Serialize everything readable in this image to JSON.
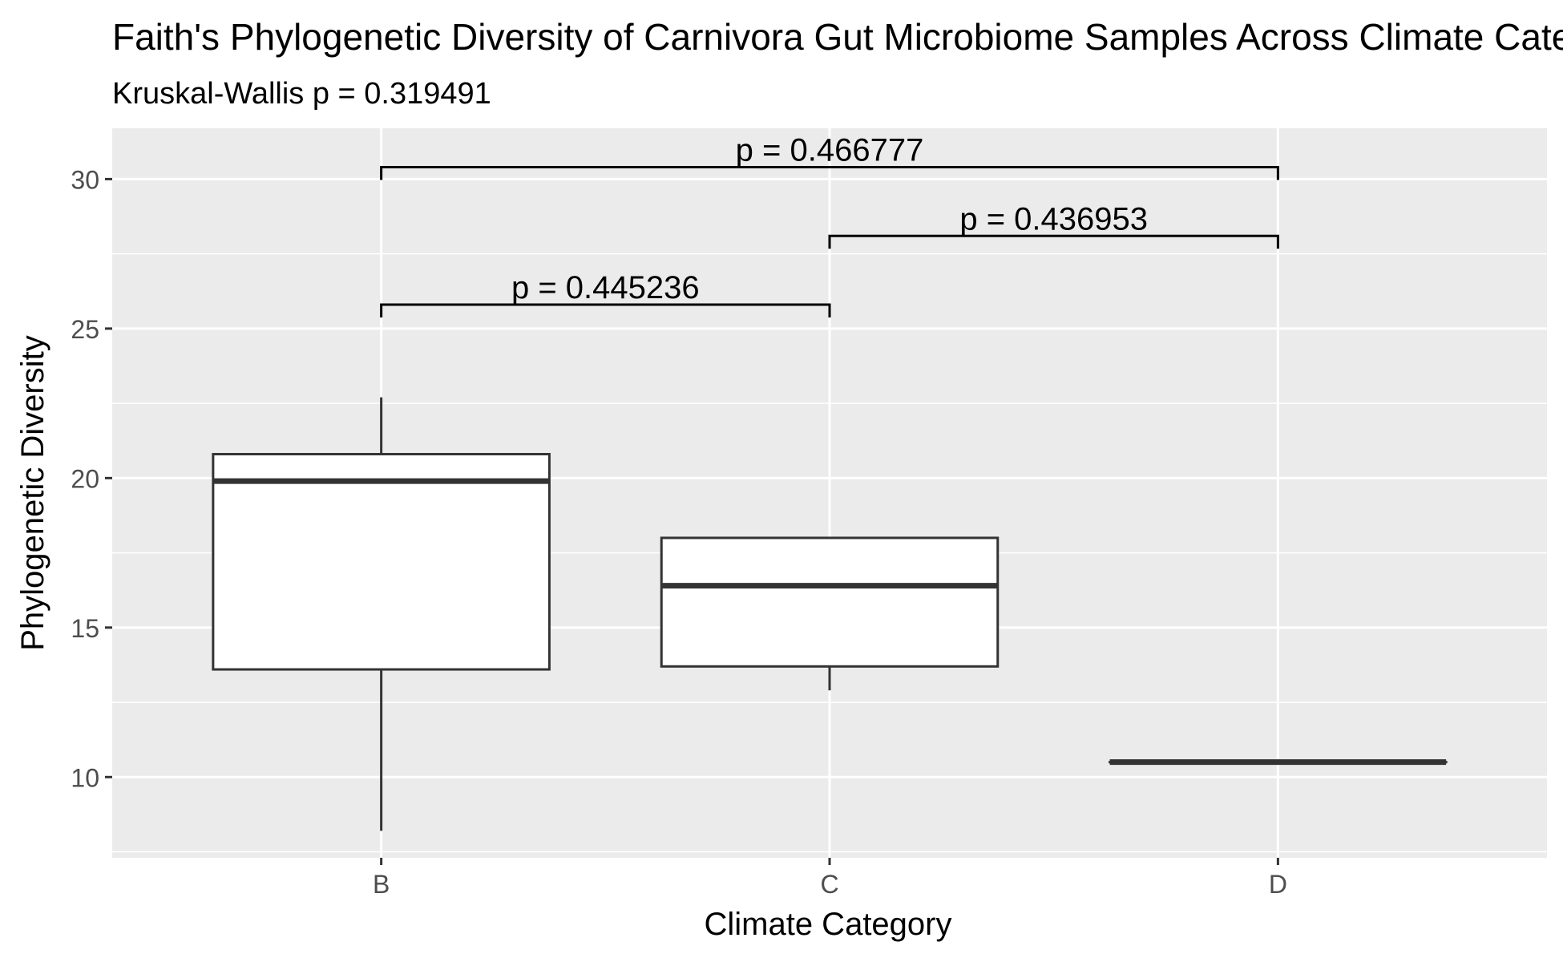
{
  "chart_data": {
    "type": "box",
    "title": "Faith's Phylogenetic Diversity of Carnivora Gut Microbiome Samples Across Climate Categories",
    "subtitle": "Kruskal-Wallis p = 0.319491",
    "xlabel": "Climate Category",
    "ylabel": "Phylogenetic Diversity",
    "ylim": [
      7.3,
      31.7
    ],
    "yticks": [
      10,
      15,
      20,
      25,
      30
    ],
    "categories": [
      "B",
      "C",
      "D"
    ],
    "boxes": [
      {
        "category": "B",
        "lower_whisker": 8.2,
        "q1": 13.6,
        "median": 19.9,
        "q3": 20.8,
        "upper_whisker": 22.7
      },
      {
        "category": "C",
        "lower_whisker": 12.9,
        "q1": 13.7,
        "median": 16.4,
        "q3": 18.0,
        "upper_whisker": 18.0
      },
      {
        "category": "D",
        "lower_whisker": 10.5,
        "q1": 10.5,
        "median": 10.5,
        "q3": 10.5,
        "upper_whisker": 10.5
      }
    ],
    "comparisons": [
      {
        "from": "B",
        "to": "C",
        "y": 25.8,
        "label": "p = 0.445236"
      },
      {
        "from": "C",
        "to": "D",
        "y": 28.1,
        "label": "p = 0.436953"
      },
      {
        "from": "B",
        "to": "D",
        "y": 30.4,
        "label": "p = 0.466777"
      }
    ],
    "grid": true,
    "legend": "none"
  }
}
